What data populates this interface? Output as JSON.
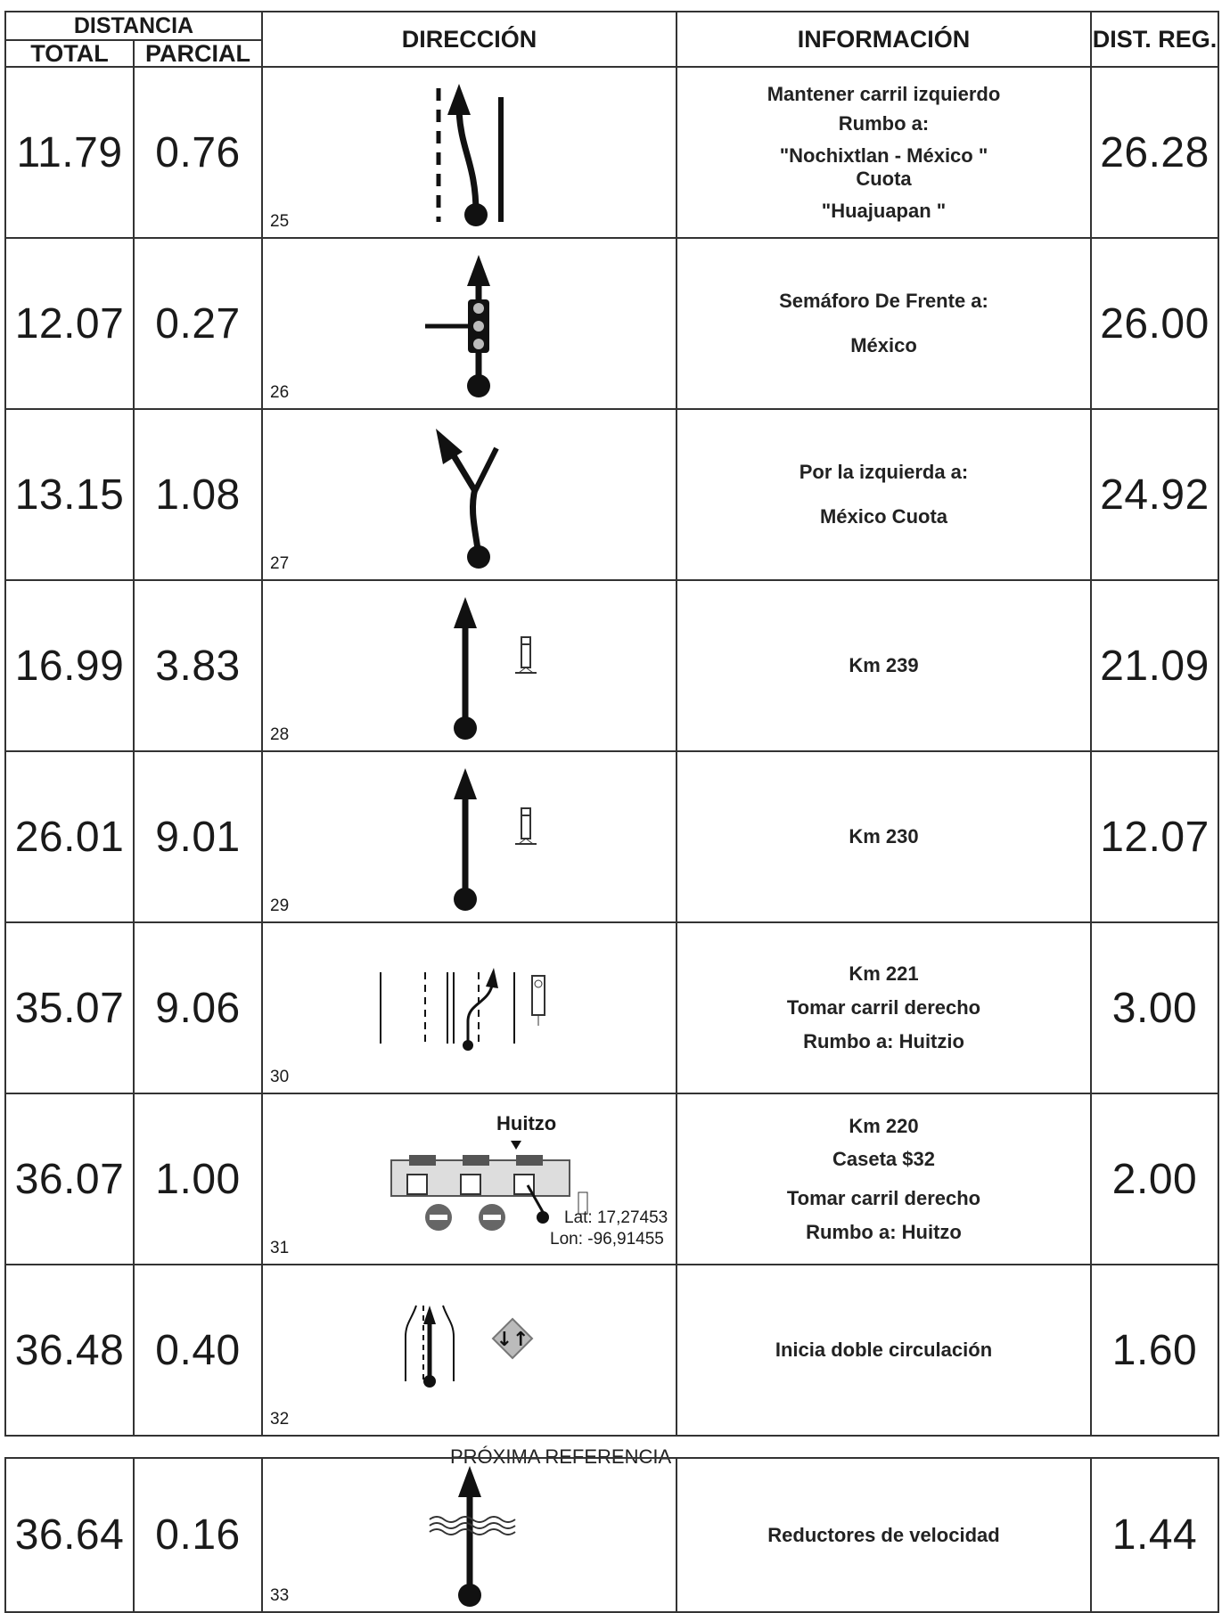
{
  "header": {
    "distancia": "DISTANCIA",
    "total": "TOTAL",
    "parcial": "PARCIAL",
    "direccion": "DIRECCIÓN",
    "informacion": "INFORMACIÓN",
    "dist_reg": "DIST. REG."
  },
  "rows": [
    {
      "total": "11.79",
      "parcial": "0.76",
      "step": "25",
      "info": [
        "Mantener carril izquierdo",
        "Rumbo a:",
        "\"Nochixtlan - México \"",
        "Cuota",
        "\"Huajuapan \""
      ],
      "dist": "26.28",
      "icon": "lane-keep-left-icon"
    },
    {
      "total": "12.07",
      "parcial": "0.27",
      "step": "26",
      "info": [
        "Semáforo De Frente a:",
        "México"
      ],
      "dist": "26.00",
      "icon": "traffic-light-icon"
    },
    {
      "total": "13.15",
      "parcial": "1.08",
      "step": "27",
      "info": [
        "Por la izquierda a:",
        "México Cuota"
      ],
      "dist": "24.92",
      "icon": "fork-left-icon"
    },
    {
      "total": "16.99",
      "parcial": "3.83",
      "step": "28",
      "info": [
        "Km 239"
      ],
      "dist": "21.09",
      "icon": "straight-km-post-icon"
    },
    {
      "total": "26.01",
      "parcial": "9.01",
      "step": "29",
      "info": [
        "Km 230"
      ],
      "dist": "12.07",
      "icon": "straight-km-post-icon"
    },
    {
      "total": "35.07",
      "parcial": "9.06",
      "step": "30",
      "info": [
        "Km 221",
        "Tomar carril derecho",
        "Rumbo a: Huitzio"
      ],
      "dist": "3.00",
      "icon": "lane-change-right-icon"
    },
    {
      "total": "36.07",
      "parcial": "1.00",
      "step": "31",
      "info": [
        "Km 220",
        "Caseta $32",
        "Tomar carril derecho",
        "Rumbo a: Huitzo"
      ],
      "dist": "2.00",
      "icon": "toll-booth-icon",
      "toll": {
        "label": "Huitzo",
        "lat": "Lat: 17,27453",
        "lon": "Lon: -96,91455"
      }
    },
    {
      "total": "36.48",
      "parcial": "0.40",
      "step": "32",
      "info": [
        "Inicia doble circulación"
      ],
      "dist": "1.60",
      "icon": "two-way-traffic-icon"
    }
  ],
  "separator": "PRÓXIMA REFERENCIA",
  "next_row": {
    "total": "36.64",
    "parcial": "0.16",
    "step": "33",
    "info": [
      "Reductores de velocidad"
    ],
    "dist": "1.44",
    "icon": "speed-bumps-icon"
  }
}
